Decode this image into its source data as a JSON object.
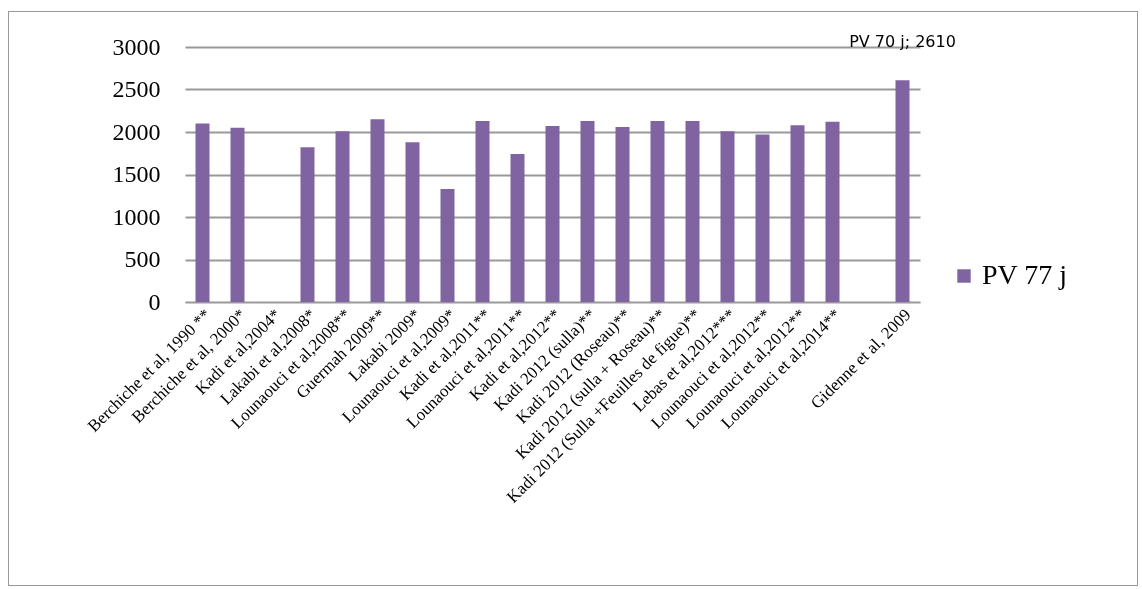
{
  "chart_data": {
    "type": "bar",
    "categories": [
      "Berchiche et al, 1990 **",
      "Berchiche et al, 2000*",
      "Kadi et al,2004*",
      "Lakabi et al,2008*",
      "Lounaouci et al,2008**",
      "Guermah 2009**",
      "Lakabi 2009*",
      "Lounaouci et al,2009*",
      "Kadi et al,2011**",
      "Lounaouci et al,2011**",
      "Kadi et al,2012**",
      "Kadi 2012 (sulla)**",
      "Kadi 2012 (Roseau)**",
      "Kadi 2012 (sulla + Roseau)**",
      "Kadi 2012 (Sulla +Feuilles de figue)**",
      "Lebas et al,2012***",
      "Lounaouci et al,2012**",
      "Lounaouci et al,2012**",
      "Lounaouci et al,2014**",
      null,
      "Gidenne et al, 2009"
    ],
    "series": [
      {
        "name": "PV 77 j",
        "color": "#8064a2",
        "values": [
          2100,
          2050,
          null,
          1820,
          2010,
          2150,
          1880,
          1330,
          2130,
          1740,
          2070,
          2130,
          2060,
          2130,
          2130,
          2010,
          1970,
          2080,
          2120,
          null,
          2610
        ]
      }
    ],
    "ylim": [
      0,
      3000
    ],
    "yticks": [
      0,
      500,
      1000,
      1500,
      2000,
      2500,
      3000
    ],
    "grid": "y",
    "legend": "right",
    "annotations": [
      {
        "text": "PV 70 j; 2610",
        "x": "Gidenne et al, 2009",
        "y": 2610
      }
    ]
  }
}
